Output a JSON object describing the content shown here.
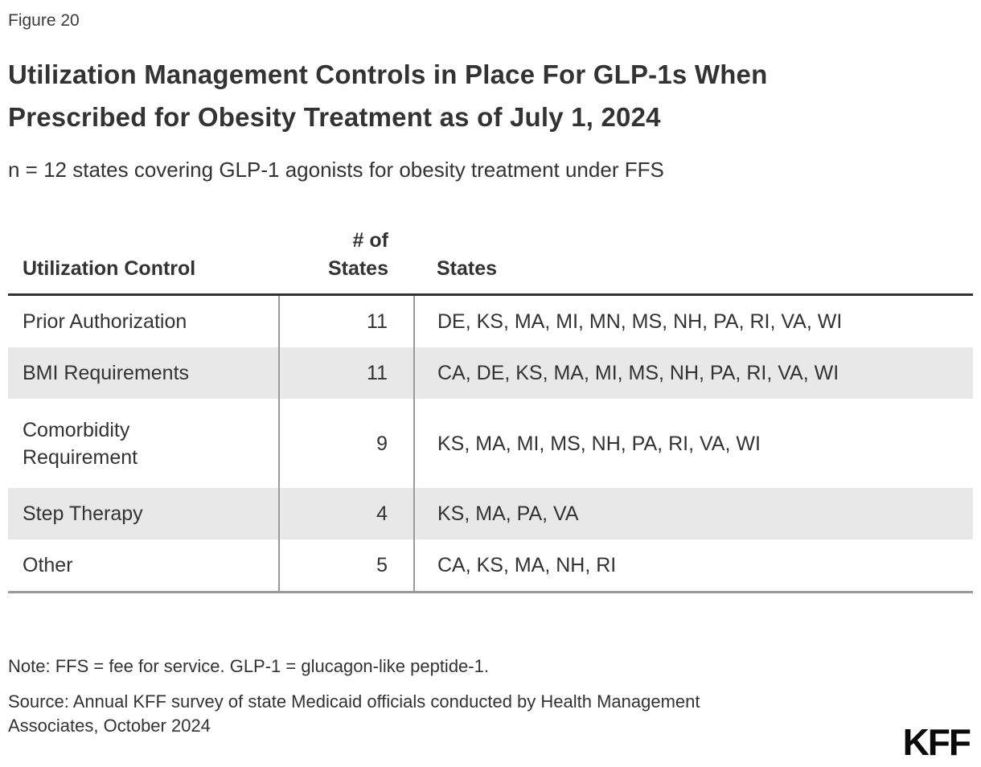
{
  "figure_label": "Figure 20",
  "title": "Utilization Management Controls in Place For GLP-1s When\nPrescribed for Obesity Treatment as of July 1, 2024",
  "subtitle": "n = 12 states covering GLP-1 agonists for obesity treatment under FFS",
  "chart_data": {
    "type": "table",
    "columns": [
      "Utilization Control",
      "# of States",
      "States"
    ],
    "header_labels": {
      "control": "Utilization Control",
      "count": "# of\nStates",
      "states": "States"
    },
    "rows": [
      {
        "control": "Prior Authorization",
        "count": "11",
        "states": "DE, KS, MA, MI, MN, MS, NH, PA, RI, VA, WI"
      },
      {
        "control": "BMI Requirements",
        "count": "11",
        "states": "CA, DE, KS, MA, MI, MS, NH, PA, RI, VA, WI"
      },
      {
        "control": "Comorbidity\nRequirement",
        "count": "9",
        "states": "KS, MA, MI, MS, NH, PA, RI, VA, WI"
      },
      {
        "control": "Step Therapy",
        "count": "4",
        "states": "KS, MA, PA, VA"
      },
      {
        "control": "Other",
        "count": "5",
        "states": "CA, KS, MA, NH, RI"
      }
    ],
    "layout": {
      "row_shading_color": "#e8e8e8",
      "header_rule_color": "#333333",
      "bottom_rule_color": "#999999",
      "divider_color": "#9a9a9a"
    }
  },
  "footer": {
    "note": "Note: FFS = fee for service. GLP-1 = glucagon-like peptide-1.",
    "source": "Source: Annual KFF survey of state Medicaid officials conducted by Health Management\nAssociates, October 2024",
    "logo_text": "KFF"
  }
}
